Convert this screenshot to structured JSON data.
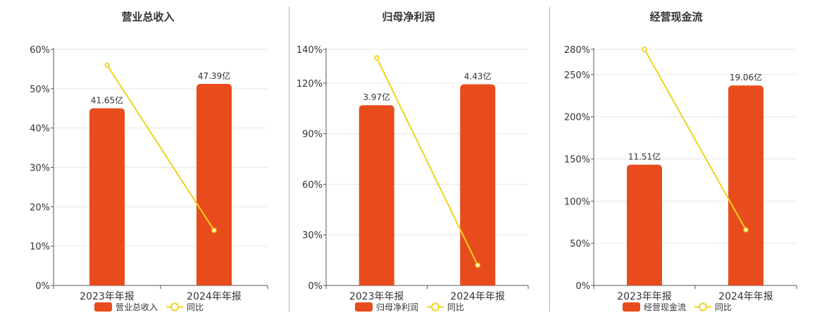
{
  "colors": {
    "bar": "#e84c1c",
    "line": "#f2d21b",
    "grid": "#e6e6e6",
    "axis": "#555555",
    "divider": "#b4b4b4",
    "text": "#333333"
  },
  "chart_data": [
    {
      "type": "bar",
      "title": "营业总收入",
      "categories": [
        "2023年年报",
        "2024年年报"
      ],
      "series": [
        {
          "name": "营业总收入",
          "type": "bar",
          "values": [
            41.65,
            47.39
          ],
          "labels": [
            "41.65亿",
            "47.39亿"
          ]
        },
        {
          "name": "同比",
          "type": "line",
          "values": [
            56,
            14
          ]
        }
      ],
      "bar_axis_max": 55.5,
      "ylim": [
        0,
        60
      ],
      "yticks": [
        0,
        10,
        20,
        30,
        40,
        50,
        60
      ],
      "ytick_labels": [
        "0%",
        "10%",
        "20%",
        "30%",
        "40%",
        "50%",
        "60%"
      ],
      "grid": true,
      "legend": "bottom"
    },
    {
      "type": "bar",
      "title": "归母净利润",
      "categories": [
        "2023年年报",
        "2024年年报"
      ],
      "series": [
        {
          "name": "归母净利润",
          "type": "bar",
          "values": [
            3.97,
            4.43
          ],
          "labels": [
            "3.97亿",
            "4.43亿"
          ]
        },
        {
          "name": "同比",
          "type": "line",
          "values": [
            135,
            12
          ]
        }
      ],
      "bar_axis_max": 5.2,
      "ylim": [
        0,
        140
      ],
      "yticks": [
        0,
        30,
        60,
        90,
        120,
        140
      ],
      "ytick_labels": [
        "0%",
        "30%",
        "60%",
        "90%",
        "120%",
        "140%"
      ],
      "grid": true,
      "legend": "bottom"
    },
    {
      "type": "bar",
      "title": "经营现金流",
      "categories": [
        "2023年年报",
        "2024年年报"
      ],
      "series": [
        {
          "name": "经营现金流",
          "type": "bar",
          "values": [
            11.51,
            19.06
          ],
          "labels": [
            "11.51亿",
            "19.06亿"
          ]
        },
        {
          "name": "同比",
          "type": "line",
          "values": [
            280,
            66
          ]
        }
      ],
      "bar_axis_max": 22.5,
      "ylim": [
        0,
        280
      ],
      "yticks": [
        0,
        50,
        100,
        150,
        200,
        250,
        280
      ],
      "ytick_labels": [
        "0%",
        "50%",
        "100%",
        "150%",
        "200%",
        "250%",
        "280%"
      ],
      "grid": true,
      "legend": "bottom"
    }
  ]
}
